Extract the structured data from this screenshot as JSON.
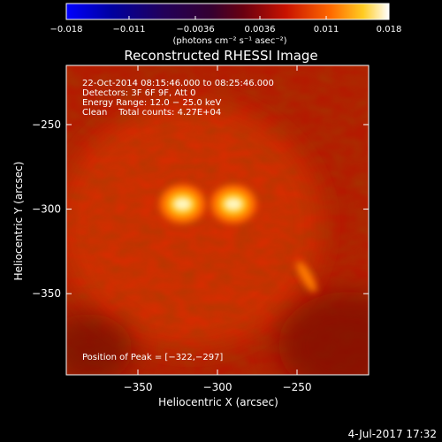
{
  "chart_data": {
    "type": "heatmap",
    "title": "Reconstructed RHESSI Image",
    "xlabel": "Heliocentric X (arcsec)",
    "ylabel": "Heliocentric Y (arcsec)",
    "xlim": [
      -395,
      -205
    ],
    "ylim": [
      -398,
      -215
    ],
    "x_ticks": [
      -350,
      -300,
      -250
    ],
    "x_tick_labels": [
      "−350",
      "−300",
      "−250"
    ],
    "y_ticks": [
      -250,
      -300,
      -350
    ],
    "y_tick_labels": [
      "−250",
      "−300",
      "−350"
    ],
    "colorbar": {
      "range": [
        -0.018,
        0.018
      ],
      "ticks": [
        -0.018,
        -0.011,
        -0.0036,
        0.0036,
        0.011,
        0.018
      ],
      "tick_labels": [
        "−0.018",
        "−0.011",
        "−0.0036",
        "0.0036",
        "0.011",
        "0.018"
      ],
      "unit_label": "(photons cm⁻² s⁻¹ asec⁻²)"
    },
    "sources": [
      {
        "x": -322,
        "y": -297,
        "intensity": 1.0
      },
      {
        "x": -290,
        "y": -297,
        "intensity": 1.0
      },
      {
        "x": -244,
        "y": -340,
        "intensity": 0.55
      }
    ],
    "annotations": {
      "time": "22-Oct-2014 08:15:46.000 to 08:25:46.000",
      "detectors": "Detectors: 3F 6F 9F, Att 0",
      "energy": "Energy Range: 12.0 − 25.0 keV",
      "clean": "Clean    Total counts: 4.27E+04",
      "peak": "Position of Peak = [−322,−297]"
    },
    "colors": {
      "background": "#000000",
      "axes": "#ffffff",
      "text": "#ffffff"
    }
  },
  "footer": {
    "date": "4-Jul-2017 17:32"
  }
}
